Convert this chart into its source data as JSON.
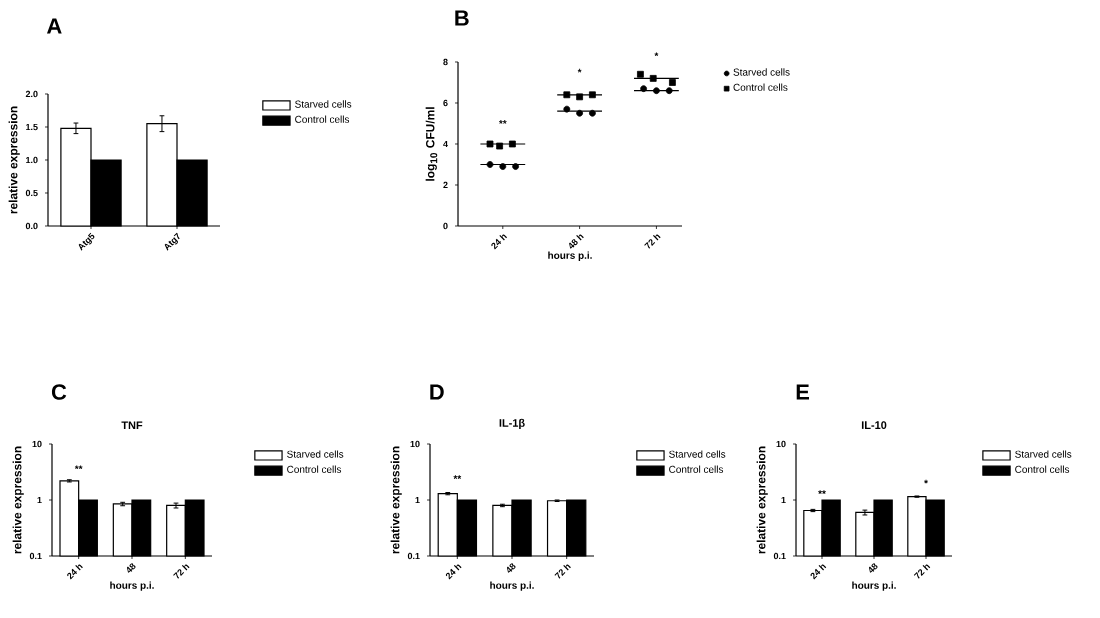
{
  "chart_data": [
    {
      "type": "bar",
      "ylabel": "relative expression",
      "categories": [
        "Atg5",
        "Atg7"
      ],
      "ylim": [
        0,
        2
      ],
      "yticks": [
        {
          "value": 0,
          "label": "0.0"
        },
        {
          "value": 0.5,
          "label": "0.5"
        },
        {
          "value": 1,
          "label": "1.0"
        },
        {
          "value": 1.5,
          "label": "1.5"
        },
        {
          "value": 2,
          "label": "2.0"
        }
      ],
      "legend": "top right",
      "series": [
        {
          "name": "Starved cells",
          "color": "#ffffff",
          "values": [
            1.48,
            1.55
          ],
          "errors": [
            0.08,
            0.12
          ]
        },
        {
          "name": "Control cells",
          "color": "#000000",
          "values": [
            1,
            1
          ]
        }
      ],
      "annotations": [
        "A"
      ]
    },
    {
      "type": "scatter",
      "xlabel": "hours p.i.",
      "ylabel": "log$_{10}$ CFU/ml",
      "xlim": [
        10,
        80
      ],
      "xticks": [
        {
          "value": 24,
          "label": "24 h"
        },
        {
          "value": 48,
          "label": "48 h"
        },
        {
          "value": 72,
          "label": "72 h"
        }
      ],
      "ylim": [
        0,
        8
      ],
      "yticks": [
        0,
        2,
        4,
        6,
        8
      ],
      "legend": "top right",
      "series": [
        {
          "name": "Starved cells",
          "color": "#000000",
          "marker": "circle",
          "x": [
            20,
            24,
            28,
            44,
            48,
            52,
            68,
            72,
            76
          ],
          "values": [
            3.0,
            2.9,
            2.9,
            5.7,
            5.5,
            5.5,
            6.7,
            6.6,
            6.6
          ]
        },
        {
          "name": "Control cells",
          "color": "#000000",
          "marker": "square",
          "x": [
            20,
            23,
            27,
            44,
            48,
            52,
            67,
            71,
            77
          ],
          "values": [
            4.0,
            3.9,
            4.0,
            6.4,
            6.3,
            6.4,
            7.4,
            7.2,
            7.0
          ]
        },
        {
          "type": "line",
          "color": "#000000",
          "x": [
            17,
            31
          ],
          "values": [
            3.0,
            3.0
          ]
        },
        {
          "type": "line",
          "color": "#000000",
          "x": [
            17,
            31
          ],
          "values": [
            4.0,
            4.0
          ]
        },
        {
          "type": "line",
          "color": "#000000",
          "x": [
            41,
            55
          ],
          "values": [
            5.6,
            5.6
          ]
        },
        {
          "type": "line",
          "color": "#000000",
          "x": [
            41,
            55
          ],
          "values": [
            6.4,
            6.4
          ]
        },
        {
          "type": "line",
          "color": "#000000",
          "x": [
            65,
            79
          ],
          "values": [
            6.6,
            6.6
          ]
        },
        {
          "type": "line",
          "color": "#000000",
          "x": [
            65,
            79
          ],
          "values": [
            7.2,
            7.2
          ]
        }
      ],
      "annotations": [
        "B",
        "**",
        "*",
        "*"
      ]
    },
    {
      "type": "bar",
      "title": "TNF",
      "xlabel": "hours p.i.",
      "ylabel": "relative expression",
      "categories": [
        "24 h",
        "48",
        "72 h"
      ],
      "log": true,
      "ylim": [
        0.1,
        10
      ],
      "yticks": [
        0.1,
        1,
        10
      ],
      "legend": "top right",
      "series": [
        {
          "name": "Starved cells",
          "color": "#ffffff",
          "values": [
            2.2,
            0.85,
            0.8
          ],
          "errors": [
            0.1,
            0.06,
            0.08
          ]
        },
        {
          "name": "Control cells",
          "color": "#000000",
          "values": [
            1,
            1,
            1
          ]
        }
      ],
      "annotations": [
        "C",
        "**"
      ]
    },
    {
      "type": "bar",
      "title": "IL-1β",
      "xlabel": "hours p.i.",
      "ylabel": "relative expression",
      "categories": [
        "24 h",
        "48",
        "72 h"
      ],
      "log": true,
      "ylim": [
        0.1,
        10
      ],
      "yticks": [
        0.1,
        1,
        10
      ],
      "legend": "top right",
      "series": [
        {
          "name": "Starved cells",
          "color": "#ffffff",
          "values": [
            1.3,
            0.8,
            0.97
          ],
          "errors": [
            0.06,
            0.04,
            0.03
          ]
        },
        {
          "name": "Control cells",
          "color": "#000000",
          "values": [
            1,
            1,
            1
          ]
        }
      ],
      "annotations": [
        "D",
        "**"
      ]
    },
    {
      "type": "bar",
      "title": "IL-10",
      "xlabel": "hours p.i.",
      "ylabel": "relative expression",
      "categories": [
        "24 h",
        "48",
        "72 h"
      ],
      "log": true,
      "ylim": [
        0.1,
        10
      ],
      "yticks": [
        0.1,
        1,
        10
      ],
      "legend": "top right",
      "series": [
        {
          "name": "Starved cells",
          "color": "#ffffff",
          "values": [
            0.65,
            0.6,
            1.15
          ],
          "errors": [
            0.03,
            0.06,
            0.03
          ]
        },
        {
          "name": "Control cells",
          "color": "#000000",
          "values": [
            1,
            1,
            1
          ]
        }
      ],
      "annotations": [
        "E",
        "**",
        "*"
      ]
    }
  ]
}
